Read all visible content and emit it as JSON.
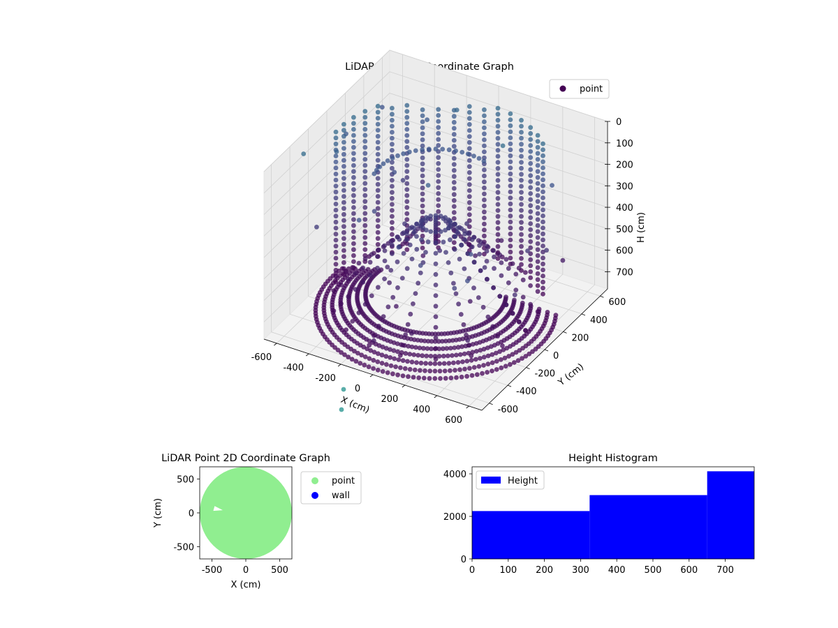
{
  "chart_data": [
    {
      "type": "scatter",
      "projection": "3d",
      "title": "LiDAR Point 3D Coordinate Graph",
      "xlabel": "X (cm)",
      "ylabel": "Y (cm)",
      "zlabel": "H (cm)",
      "xlim": [
        -680,
        680
      ],
      "ylim": [
        -680,
        680
      ],
      "zlim": [
        780,
        0
      ],
      "z_axis_inverted": true,
      "xticks": [
        -600,
        -400,
        -200,
        0,
        200,
        400,
        600
      ],
      "yticks": [
        -600,
        -400,
        -200,
        0,
        200,
        400,
        600
      ],
      "zticks": [
        0,
        100,
        200,
        300,
        400,
        500,
        600,
        700
      ],
      "legend": {
        "position": "upper-right",
        "entries": [
          "point"
        ]
      },
      "colormap": "viridis",
      "grid": true,
      "pane_color": "#f2f2f2",
      "series": [
        {
          "name": "point",
          "color": "#440154",
          "description_shape": "dense point cloud: circular floor ring of radius ~650 at heights ~650-780, vertical columns of points on the back half, outlier points near the top",
          "sample_points": [
            {
              "x": -600,
              "y": 300,
              "h": 700
            },
            {
              "x": -400,
              "y": -400,
              "h": 760
            },
            {
              "x": 0,
              "y": -650,
              "h": 780
            },
            {
              "x": 400,
              "y": -400,
              "h": 760
            },
            {
              "x": 620,
              "y": 100,
              "h": 700
            },
            {
              "x": 0,
              "y": 600,
              "h": 100
            },
            {
              "x": 0,
              "y": 0,
              "h": 200
            },
            {
              "x": 450,
              "y": 450,
              "h": 600
            }
          ]
        }
      ]
    },
    {
      "type": "scatter",
      "title": "LiDAR Point 2D Coordinate Graph",
      "xlabel": "X (cm)",
      "ylabel": "Y (cm)",
      "xlim": [
        -680,
        680
      ],
      "ylim": [
        -680,
        680
      ],
      "xticks": [
        -500,
        0,
        500
      ],
      "yticks": [
        -500,
        0,
        500
      ],
      "legend": {
        "position": "outside-right",
        "entries": [
          "point",
          "wall"
        ]
      },
      "series": [
        {
          "name": "point",
          "color": "#90ee90",
          "region": "filled disk of radius ~680 centered at origin, small notch near (-450, 60)"
        },
        {
          "name": "wall",
          "color": "#0000ff",
          "values": []
        }
      ]
    },
    {
      "type": "bar",
      "subtype": "histogram",
      "title": "Height Histogram",
      "xlim": [
        0,
        780
      ],
      "ylim": [
        0,
        4330
      ],
      "xticks": [
        0,
        100,
        200,
        300,
        400,
        500,
        600,
        700
      ],
      "yticks": [
        0,
        2000,
        4000
      ],
      "legend": {
        "position": "upper-left",
        "entries": [
          "Height"
        ]
      },
      "series": [
        {
          "name": "Height",
          "color": "#0000ff",
          "bins": [
            {
              "start": 0,
              "end": 325,
              "count": 2250
            },
            {
              "start": 325,
              "end": 650,
              "count": 3000
            },
            {
              "start": 650,
              "end": 780,
              "count": 4120
            }
          ]
        }
      ]
    }
  ]
}
